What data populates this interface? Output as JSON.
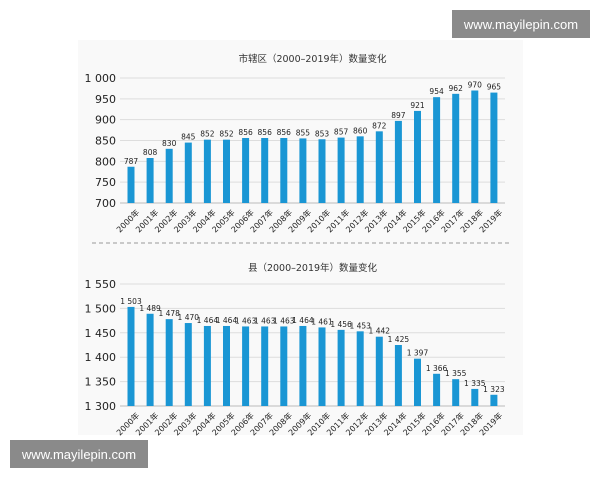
{
  "watermarks": [
    "www.mayilepin.com",
    "www.mayilepin.com"
  ],
  "chart_data": [
    {
      "type": "bar",
      "title": "市辖区（2000–2019年）数量变化",
      "categories": [
        "2000年",
        "2001年",
        "2002年",
        "2003年",
        "2004年",
        "2005年",
        "2006年",
        "2007年",
        "2008年",
        "2009年",
        "2010年",
        "2011年",
        "2012年",
        "2013年",
        "2014年",
        "2015年",
        "2016年",
        "2017年",
        "2018年",
        "2019年"
      ],
      "values": [
        787,
        808,
        830,
        845,
        852,
        852,
        856,
        856,
        856,
        855,
        853,
        857,
        860,
        872,
        897,
        921,
        954,
        962,
        970,
        965
      ],
      "ylim": [
        700,
        1000
      ],
      "yticks": [
        "700",
        "750",
        "800",
        "850",
        "900",
        "950",
        "1 000"
      ],
      "grid": true,
      "color": "#1a96d4"
    },
    {
      "type": "bar",
      "title": "县（2000–2019年）数量变化",
      "categories": [
        "2000年",
        "2001年",
        "2002年",
        "2003年",
        "2004年",
        "2005年",
        "2006年",
        "2007年",
        "2008年",
        "2009年",
        "2010年",
        "2011年",
        "2012年",
        "2013年",
        "2014年",
        "2015年",
        "2016年",
        "2017年",
        "2018年",
        "2019年"
      ],
      "values": [
        1503,
        1489,
        1478,
        1470,
        1464,
        1464,
        1463,
        1463,
        1463,
        1464,
        1461,
        1456,
        1453,
        1442,
        1425,
        1397,
        1366,
        1355,
        1335,
        1323
      ],
      "value_labels": [
        "1 503",
        "1 489",
        "1 478",
        "1 470",
        "1 464",
        "1 464",
        "1 463",
        "1 463",
        "1 463",
        "1 464",
        "1 461",
        "1 456",
        "1 453",
        "1 442",
        "1 425",
        "1 397",
        "1 366",
        "1 355",
        "1 335",
        "1 323"
      ],
      "ylim": [
        1300,
        1550
      ],
      "yticks": [
        "1 300",
        "1 350",
        "1 400",
        "1 450",
        "1 500",
        "1 550"
      ],
      "grid": true,
      "color": "#1a96d4"
    }
  ]
}
